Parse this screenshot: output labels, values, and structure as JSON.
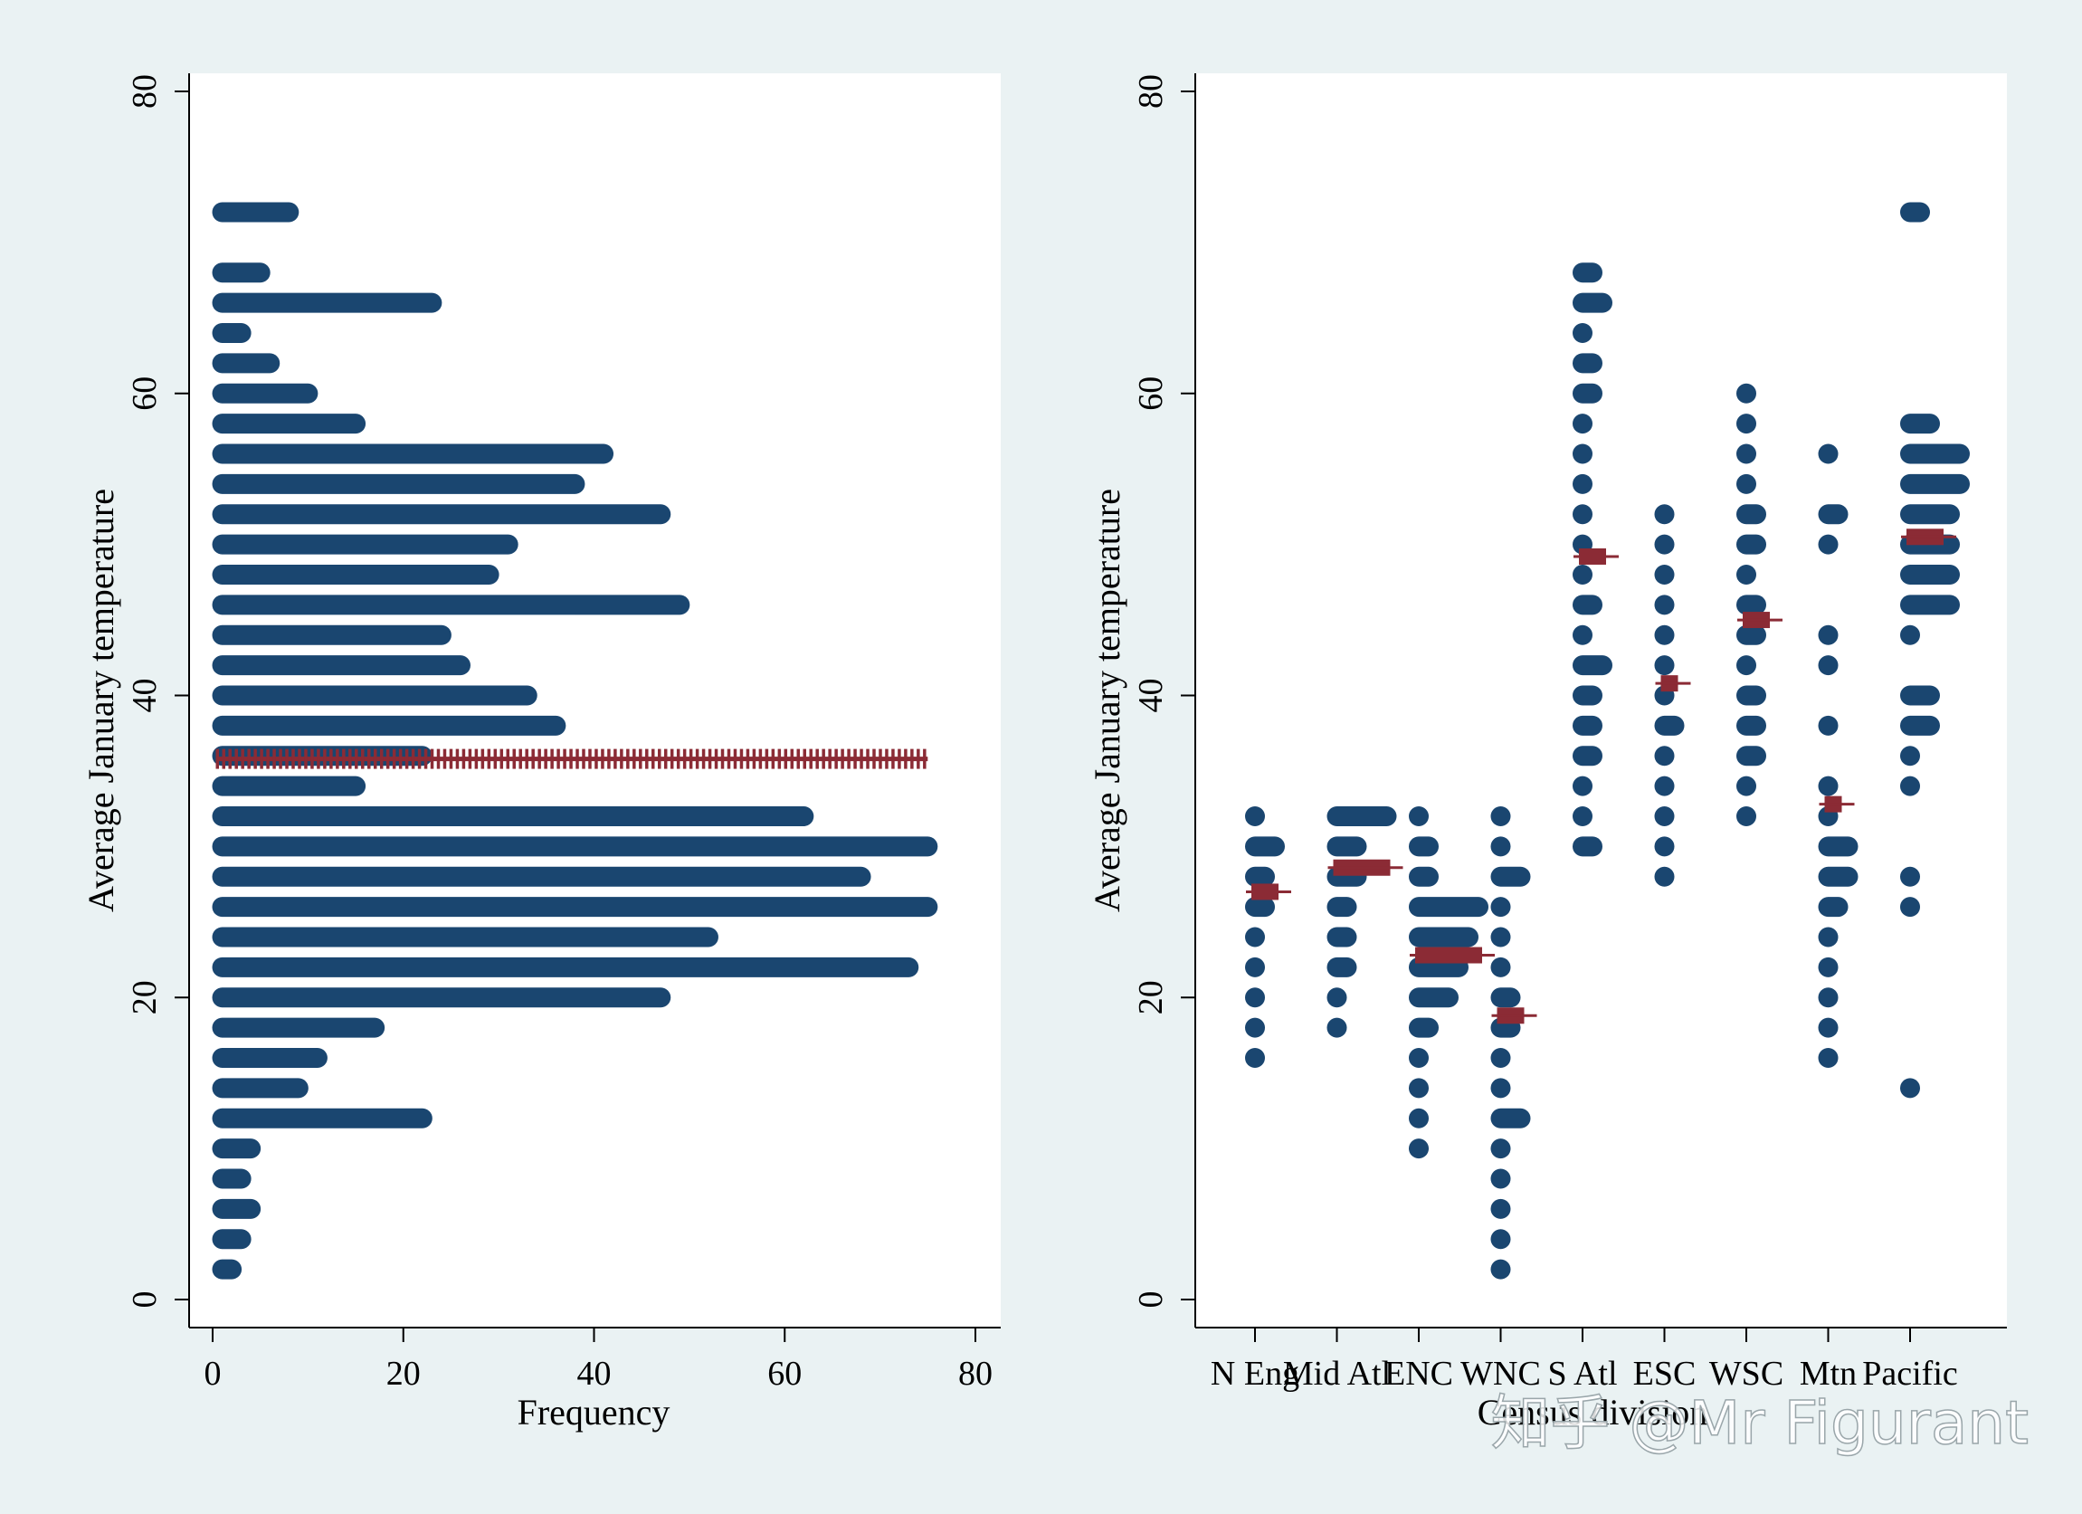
{
  "watermark": "知乎 @Mr Figurant",
  "colors": {
    "dots": "#1a4670",
    "mean_marker": "#8b2b35",
    "plot_bg": "#ffffff",
    "outer_bg": "#eaf2f3"
  },
  "chart_data": [
    {
      "type": "dotplot",
      "orientation": "horizontal",
      "xlabel": "Frequency",
      "ylabel": "Average January temperature",
      "xlim": [
        0,
        80
      ],
      "ylim": [
        0,
        80
      ],
      "xticks": [
        0,
        20,
        40,
        60,
        80
      ],
      "yticks": [
        0,
        20,
        40,
        60,
        80
      ],
      "bins": [
        {
          "y": 2,
          "count": 2
        },
        {
          "y": 4,
          "count": 3
        },
        {
          "y": 6,
          "count": 4
        },
        {
          "y": 8,
          "count": 3
        },
        {
          "y": 10,
          "count": 4
        },
        {
          "y": 12,
          "count": 22
        },
        {
          "y": 14,
          "count": 9
        },
        {
          "y": 16,
          "count": 11
        },
        {
          "y": 18,
          "count": 17
        },
        {
          "y": 20,
          "count": 47
        },
        {
          "y": 22,
          "count": 73
        },
        {
          "y": 24,
          "count": 52
        },
        {
          "y": 26,
          "count": 75
        },
        {
          "y": 28,
          "count": 68
        },
        {
          "y": 30,
          "count": 75
        },
        {
          "y": 32,
          "count": 62
        },
        {
          "y": 34,
          "count": 15
        },
        {
          "y": 36,
          "count": 22
        },
        {
          "y": 38,
          "count": 36
        },
        {
          "y": 40,
          "count": 33
        },
        {
          "y": 42,
          "count": 26
        },
        {
          "y": 44,
          "count": 24
        },
        {
          "y": 46,
          "count": 49
        },
        {
          "y": 48,
          "count": 29
        },
        {
          "y": 50,
          "count": 31
        },
        {
          "y": 52,
          "count": 47
        },
        {
          "y": 54,
          "count": 38
        },
        {
          "y": 56,
          "count": 41
        },
        {
          "y": 58,
          "count": 15
        },
        {
          "y": 60,
          "count": 10
        },
        {
          "y": 62,
          "count": 6
        },
        {
          "y": 64,
          "count": 3
        },
        {
          "y": 66,
          "count": 23
        },
        {
          "y": 68,
          "count": 5
        },
        {
          "y": 72,
          "count": 8
        }
      ],
      "mean_line": {
        "y": 35.8,
        "x_from": 0,
        "x_to": 75
      }
    },
    {
      "type": "stripplot",
      "xlabel": "Census division",
      "ylabel": "Average January temperature",
      "ylim": [
        0,
        80
      ],
      "yticks": [
        0,
        20,
        40,
        60,
        80
      ],
      "categories": [
        "N Eng",
        "Mid Atl",
        "ENC",
        "WNC",
        "S Atl",
        "ESC",
        "WSC",
        "Mtn",
        "Pacific"
      ],
      "groups": [
        {
          "category": "N Eng",
          "mean": 27,
          "mean_width": 2,
          "values": [
            [
              16,
              1
            ],
            [
              18,
              1
            ],
            [
              20,
              1
            ],
            [
              22,
              1
            ],
            [
              24,
              1
            ],
            [
              26,
              2
            ],
            [
              28,
              2
            ],
            [
              30,
              3
            ],
            [
              32,
              1
            ]
          ]
        },
        {
          "category": "Mid Atl",
          "mean": 28.6,
          "mean_width": 5,
          "values": [
            [
              18,
              1
            ],
            [
              20,
              1
            ],
            [
              22,
              2
            ],
            [
              24,
              2
            ],
            [
              26,
              2
            ],
            [
              28,
              3
            ],
            [
              30,
              3
            ],
            [
              32,
              6
            ]
          ]
        },
        {
          "category": "ENC",
          "mean": 22.8,
          "mean_width": 6,
          "values": [
            [
              10,
              1
            ],
            [
              12,
              1
            ],
            [
              14,
              1
            ],
            [
              16,
              1
            ],
            [
              18,
              2
            ],
            [
              20,
              4
            ],
            [
              22,
              5
            ],
            [
              24,
              6
            ],
            [
              26,
              7
            ],
            [
              28,
              2
            ],
            [
              30,
              2
            ],
            [
              32,
              1
            ]
          ]
        },
        {
          "category": "WNC",
          "mean": 18.8,
          "mean_width": 2,
          "values": [
            [
              2,
              1
            ],
            [
              4,
              1
            ],
            [
              6,
              1
            ],
            [
              8,
              1
            ],
            [
              10,
              1
            ],
            [
              12,
              3
            ],
            [
              14,
              1
            ],
            [
              16,
              1
            ],
            [
              18,
              2
            ],
            [
              20,
              2
            ],
            [
              22,
              1
            ],
            [
              24,
              1
            ],
            [
              26,
              1
            ],
            [
              28,
              3
            ],
            [
              30,
              1
            ],
            [
              32,
              1
            ]
          ]
        },
        {
          "category": "S Atl",
          "mean": 49.2,
          "mean_width": 2,
          "values": [
            [
              30,
              2
            ],
            [
              32,
              1
            ],
            [
              34,
              1
            ],
            [
              36,
              2
            ],
            [
              38,
              2
            ],
            [
              40,
              2
            ],
            [
              42,
              3
            ],
            [
              44,
              1
            ],
            [
              46,
              2
            ],
            [
              48,
              1
            ],
            [
              50,
              1
            ],
            [
              52,
              1
            ],
            [
              54,
              1
            ],
            [
              56,
              1
            ],
            [
              58,
              1
            ],
            [
              60,
              2
            ],
            [
              62,
              2
            ],
            [
              64,
              1
            ],
            [
              66,
              3
            ],
            [
              68,
              2
            ]
          ]
        },
        {
          "category": "ESC",
          "mean": 40.8,
          "mean_width": 1,
          "values": [
            [
              28,
              1
            ],
            [
              30,
              1
            ],
            [
              32,
              1
            ],
            [
              34,
              1
            ],
            [
              36,
              1
            ],
            [
              38,
              2
            ],
            [
              40,
              1
            ],
            [
              42,
              1
            ],
            [
              44,
              1
            ],
            [
              46,
              1
            ],
            [
              48,
              1
            ],
            [
              50,
              1
            ],
            [
              52,
              1
            ]
          ]
        },
        {
          "category": "WSC",
          "mean": 45,
          "mean_width": 2,
          "values": [
            [
              32,
              1
            ],
            [
              34,
              1
            ],
            [
              36,
              2
            ],
            [
              38,
              2
            ],
            [
              40,
              2
            ],
            [
              42,
              1
            ],
            [
              44,
              2
            ],
            [
              46,
              2
            ],
            [
              48,
              1
            ],
            [
              50,
              2
            ],
            [
              52,
              2
            ],
            [
              54,
              1
            ],
            [
              56,
              1
            ],
            [
              58,
              1
            ],
            [
              60,
              1
            ]
          ]
        },
        {
          "category": "Mtn",
          "mean": 32.8,
          "mean_width": 1,
          "values": [
            [
              16,
              1
            ],
            [
              18,
              1
            ],
            [
              20,
              1
            ],
            [
              22,
              1
            ],
            [
              24,
              1
            ],
            [
              26,
              2
            ],
            [
              28,
              3
            ],
            [
              30,
              3
            ],
            [
              32,
              1
            ],
            [
              34,
              1
            ],
            [
              38,
              1
            ],
            [
              42,
              1
            ],
            [
              44,
              1
            ],
            [
              50,
              1
            ],
            [
              52,
              2
            ],
            [
              56,
              1
            ]
          ]
        },
        {
          "category": "Pacific",
          "mean": 50.5,
          "mean_width": 3,
          "values": [
            [
              14,
              1
            ],
            [
              26,
              1
            ],
            [
              28,
              1
            ],
            [
              34,
              1
            ],
            [
              36,
              1
            ],
            [
              38,
              3
            ],
            [
              40,
              3
            ],
            [
              44,
              1
            ],
            [
              46,
              5
            ],
            [
              48,
              5
            ],
            [
              50,
              5
            ],
            [
              52,
              5
            ],
            [
              54,
              6
            ],
            [
              56,
              6
            ],
            [
              58,
              3
            ],
            [
              72,
              2
            ]
          ]
        }
      ]
    }
  ]
}
